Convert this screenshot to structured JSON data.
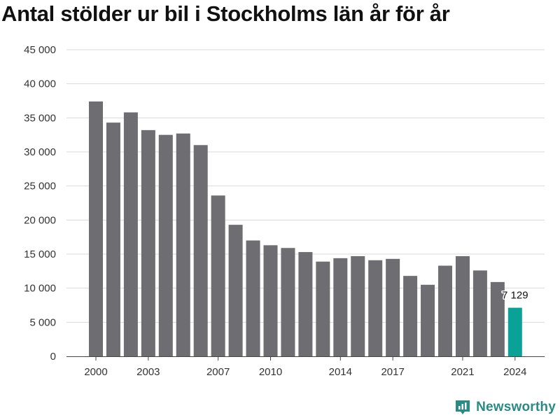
{
  "title": "Antal stölder ur bil i Stockholms län år för år",
  "brand": {
    "name": "Newsworthy",
    "color": "#2a8a85"
  },
  "chart_data": {
    "type": "bar",
    "title": "Antal stölder ur bil i Stockholms län år för år",
    "xlabel": "",
    "ylabel": "",
    "ylim": [
      0,
      45000
    ],
    "yticks": [
      0,
      5000,
      10000,
      15000,
      20000,
      25000,
      30000,
      35000,
      40000,
      45000
    ],
    "ytick_labels": [
      "0",
      "5 000",
      "10 000",
      "15 000",
      "20 000",
      "25 000",
      "30 000",
      "35 000",
      "40 000",
      "45 000"
    ],
    "xtick_labels": [
      "2000",
      "2003",
      "2007",
      "2010",
      "2014",
      "2017",
      "2021",
      "2024"
    ],
    "grid": true,
    "categories": [
      "2000",
      "2001",
      "2002",
      "2003",
      "2004",
      "2005",
      "2006",
      "2007",
      "2008",
      "2009",
      "2010",
      "2011",
      "2012",
      "2013",
      "2014",
      "2015",
      "2016",
      "2017",
      "2018",
      "2019",
      "2020",
      "2021",
      "2022",
      "2023",
      "2024"
    ],
    "values": [
      37400,
      34300,
      35800,
      33200,
      32500,
      32700,
      31000,
      23600,
      19300,
      17000,
      16300,
      15900,
      15300,
      13900,
      14400,
      14700,
      14100,
      14300,
      11800,
      10500,
      13300,
      14700,
      12600,
      10900,
      7129
    ],
    "highlight": {
      "category": "2024",
      "label": "7 129"
    },
    "colors": {
      "bar": "#6d6d72",
      "highlight": "#0aa196",
      "grid": "#d9d9d9",
      "axis": "#444444"
    }
  }
}
